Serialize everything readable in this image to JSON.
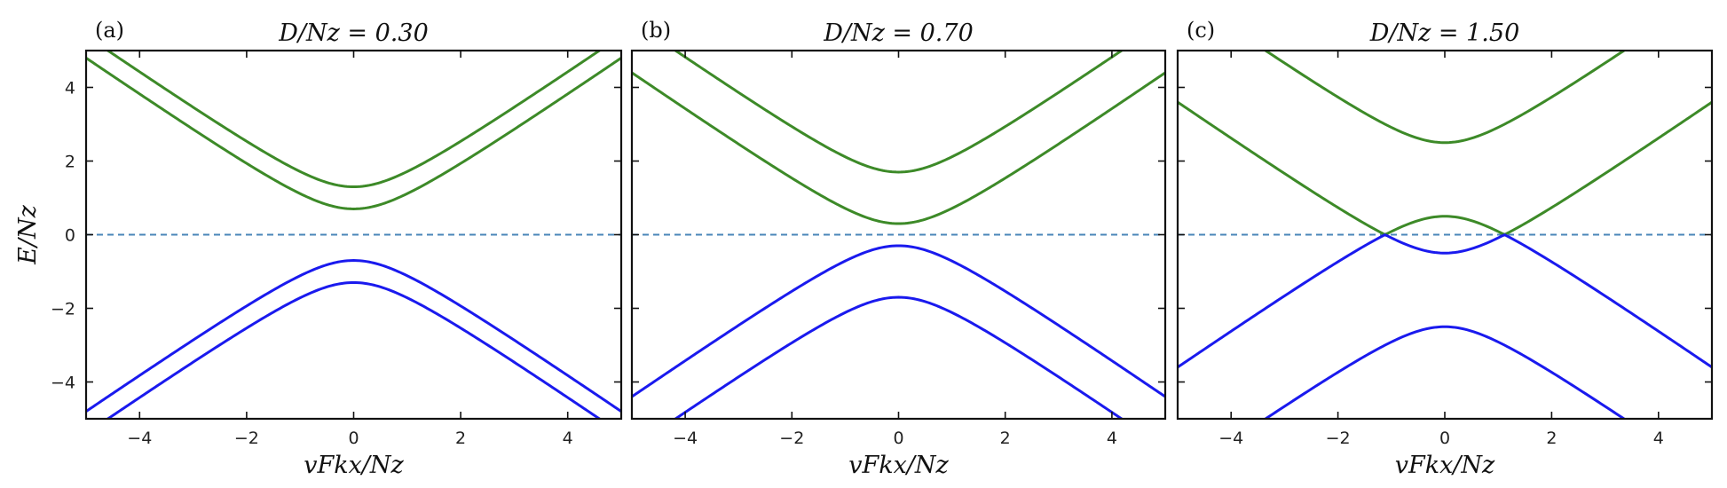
{
  "colors": {
    "conduction": "#3d8a28",
    "valence": "#1a1aee",
    "zero_line": "#4a86b8",
    "frame": "#111111"
  },
  "chart_data": [
    {
      "type": "line",
      "panel_label": "(a)",
      "title": "D/Nz = 0.30",
      "xlabel": "vFkx/Nz",
      "ylabel": "E/Nz",
      "xlim": [
        -5,
        5
      ],
      "ylim": [
        -5,
        5
      ],
      "xticks": [
        -4,
        -2,
        0,
        2,
        4
      ],
      "yticks": [
        -4,
        -2,
        0,
        2,
        4
      ],
      "reference_line": {
        "y": 0,
        "style": "dashed"
      },
      "D": 0.3,
      "series": [
        {
          "band": "conduction",
          "values_at": {
            "x": [
              -5,
              -4,
              -2,
              0,
              2,
              4,
              5
            ],
            "y": [
              5.3,
              4.3,
              2.3,
              1.3,
              2.3,
              4.3,
              5.3
            ]
          }
        },
        {
          "band": "conduction",
          "values_at": {
            "x": [
              -5,
              -4,
              -2,
              0,
              2,
              4,
              5
            ],
            "y": [
              4.75,
              3.75,
              1.81,
              0.7,
              1.81,
              3.75,
              4.75
            ]
          }
        },
        {
          "band": "valence",
          "values_at": {
            "x": [
              -5,
              -4,
              -2,
              0,
              2,
              4,
              5
            ],
            "y": [
              -4.75,
              -3.75,
              -1.81,
              -0.7,
              -1.81,
              -3.75,
              -4.75
            ]
          }
        },
        {
          "band": "valence",
          "values_at": {
            "x": [
              -5,
              -4,
              -2,
              0,
              2,
              4,
              5
            ],
            "y": [
              -5.3,
              -4.3,
              -2.3,
              -1.3,
              -2.3,
              -4.3,
              -5.3
            ]
          }
        }
      ]
    },
    {
      "type": "line",
      "panel_label": "(b)",
      "title": "D/Nz = 0.70",
      "xlabel": "vFkx/Nz",
      "ylabel": "",
      "xlim": [
        -5,
        5
      ],
      "ylim": [
        -5,
        5
      ],
      "xticks": [
        -4,
        -2,
        0,
        2,
        4
      ],
      "yticks": [
        -4,
        -2,
        0,
        2,
        4
      ],
      "reference_line": {
        "y": 0,
        "style": "dashed"
      },
      "D": 0.7,
      "series": [
        {
          "band": "conduction",
          "values_at": {
            "x": [
              -5,
              -4,
              -2,
              0,
              2,
              4,
              5
            ],
            "y": [
              5.7,
              4.7,
              2.7,
              1.7,
              2.7,
              4.7,
              5.7
            ]
          }
        },
        {
          "band": "conduction",
          "values_at": {
            "x": [
              -5,
              -4,
              -2,
              0,
              2,
              4,
              5
            ],
            "y": [
              4.3,
              3.3,
              1.36,
              0.3,
              1.36,
              3.3,
              4.3
            ]
          }
        },
        {
          "band": "valence",
          "values_at": {
            "x": [
              -5,
              -4,
              -2,
              0,
              2,
              4,
              5
            ],
            "y": [
              -4.3,
              -3.3,
              -1.36,
              -0.3,
              -1.36,
              -3.3,
              -4.3
            ]
          }
        },
        {
          "band": "valence",
          "values_at": {
            "x": [
              -5,
              -4,
              -2,
              0,
              2,
              4,
              5
            ],
            "y": [
              -5.7,
              -4.7,
              -2.7,
              -1.7,
              -2.7,
              -4.7,
              -5.7
            ]
          }
        }
      ]
    },
    {
      "type": "line",
      "panel_label": "(c)",
      "title": "D/Nz = 1.50",
      "xlabel": "vFkx/Nz",
      "ylabel": "",
      "xlim": [
        -5,
        5
      ],
      "ylim": [
        -5,
        5
      ],
      "xticks": [
        -4,
        -2,
        0,
        2,
        4
      ],
      "yticks": [
        -4,
        -2,
        0,
        2,
        4
      ],
      "reference_line": {
        "y": 0,
        "style": "dashed"
      },
      "D": 1.5,
      "series": [
        {
          "band": "conduction",
          "values_at": {
            "x": [
              -5,
              -4,
              -2,
              0,
              2,
              4,
              5
            ],
            "y": [
              6.5,
              5.5,
              3.5,
              2.5,
              3.5,
              5.5,
              6.5
            ]
          }
        },
        {
          "band": "conduction",
          "values_at": {
            "x": [
              -5,
              -4,
              -2,
              0,
              2,
              4,
              5
            ],
            "y": [
              3.5,
              2.55,
              1.16,
              1.12,
              1.16,
              2.55,
              3.5
            ]
          }
        },
        {
          "band": "valence",
          "values_at": {
            "x": [
              -5,
              -4,
              -2,
              0,
              2,
              4,
              5
            ],
            "y": [
              -3.5,
              -2.55,
              -1.16,
              -1.12,
              -1.16,
              -2.55,
              -3.5
            ]
          }
        },
        {
          "band": "valence",
          "values_at": {
            "x": [
              -5,
              -4,
              -2,
              0,
              2,
              4,
              5
            ],
            "y": [
              -6.5,
              -5.5,
              -3.5,
              -2.5,
              -3.5,
              -5.5,
              -6.5
            ]
          }
        }
      ]
    }
  ]
}
